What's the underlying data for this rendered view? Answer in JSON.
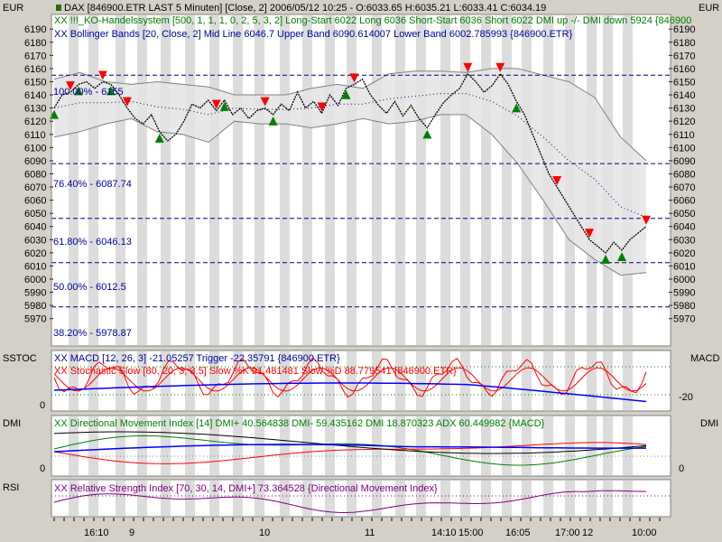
{
  "header": {
    "currency_left": "EUR",
    "currency_right": "EUR",
    "line1": "DAX [846900.ETR LAST 5 Minuten] [Close, 2] 2006/05/12 10:25 - O:6033.65 H:6035.21 L:6033.41 C:6034.19",
    "line2": "XX !!!_KO-Handelssystem [500, 1, 1, 1, 0, 2, 5, 3, 2] Long-Start 6022 Long 6036 Short-Start 6036 Short 6022 DMI up -/- DMI down 5924 {846900",
    "line3": "XX Bollinger Bands [20, Close, 2] Mid Line 6046.7 Upper Band 6090.614007 Lower Band 6002.785993 {846900.ETR}"
  },
  "panels": {
    "macd": {
      "left_label": "SSTOC",
      "right_label": "MACD",
      "line1": "XX MACD [12, 26, 3] -21.05257 Trigger -22.35791 {846900.ETR}",
      "line2": "XX Stochastic Slow [80, 20, 3, 3.5] Slow %K 91.481481 Slow %D 88.779541 {846900.ETR}",
      "tick_left": "0",
      "tick_right": "-20"
    },
    "dmi": {
      "left_label": "DMI",
      "right_label": "DMI",
      "line1": "XX Directional Movement Index [14] DMI+ 40.564838 DMI- 59.435162 DMI 18.870323 ADX 60.449982 {MACD}",
      "tick_left": "0",
      "tick_right": "0"
    },
    "rsi": {
      "left_label": "RSI",
      "line1": "XX Relative Strength Index [70, 30, 14, DMI+] 73.364528 {Directional Movement Index}"
    }
  },
  "fib_labels": [
    "100.00% - 6155",
    "76.40% - 6087.74",
    "61.80% - 6046.13",
    "50.00% - 6012.5",
    "38.20% - 5978.87"
  ],
  "x_axis_labels": [
    "16:10",
    "9",
    "10",
    "11",
    "14:10",
    "15:00",
    "16:05",
    "17:00",
    "12",
    "10:00"
  ],
  "colors": {
    "background": "#ffffff",
    "frame": "#d4d0c8",
    "price_line": "#000000",
    "long_signal": "#008000",
    "short_signal": "#ff0000",
    "fib_line": "#000080",
    "band": "#e4e4e4",
    "macd": "#0000ff",
    "stoch": "#ff0000",
    "rsi": "#800080"
  },
  "chart_data": [
    {
      "type": "line",
      "title": "DAX [846900.ETR LAST 5 Minuten]",
      "ylabel": "EUR",
      "ylim": [
        5965,
        6197
      ],
      "y_ticks": [
        6190,
        6180,
        6170,
        6160,
        6150,
        6140,
        6130,
        6120,
        6110,
        6100,
        6090,
        6080,
        6070,
        6060,
        6050,
        6040,
        6030,
        6020,
        6010,
        6000,
        5990,
        5980,
        5970
      ],
      "grid": true,
      "series": [
        {
          "name": "DAX",
          "values": [
            6130,
            6140,
            6142,
            6148,
            6150,
            6145,
            6150,
            6148,
            6140,
            6130,
            6122,
            6118,
            6125,
            6112,
            6105,
            6110,
            6120,
            6133,
            6130,
            6136,
            6128,
            6136,
            6125,
            6130,
            6122,
            6128,
            6130,
            6125,
            6133,
            6128,
            6142,
            6130,
            6135,
            6126,
            6140,
            6132,
            6145,
            6148,
            6152,
            6140,
            6132,
            6126,
            6135,
            6124,
            6132,
            6122,
            6115,
            6125,
            6134,
            6140,
            6145,
            6156,
            6150,
            6142,
            6147,
            6156,
            6148,
            6135,
            6125,
            6110,
            6095,
            6080,
            6070,
            6060,
            6050,
            6040,
            6030,
            6025,
            6020,
            6028,
            6022,
            6030,
            6035,
            6040
          ]
        },
        {
          "name": "Upper Band",
          "values": [
            6152,
            6157,
            6150,
            6148,
            6150,
            6148,
            6146,
            6140,
            6140,
            6140,
            6145,
            6148,
            6145,
            6156,
            6158,
            6158,
            6157,
            6160,
            6160,
            6155,
            6150,
            6138,
            6108,
            6090
          ]
        },
        {
          "name": "Lower Band",
          "values": [
            6108,
            6112,
            6118,
            6122,
            6112,
            6110,
            6104,
            6120,
            6118,
            6118,
            6115,
            6118,
            6122,
            6118,
            6120,
            6125,
            6125,
            6110,
            6088,
            6060,
            6030,
            6015,
            6003,
            6005
          ]
        },
        {
          "name": "Mid Line",
          "values": [
            6130,
            6134,
            6134,
            6135,
            6131,
            6129,
            6125,
            6130,
            6129,
            6129,
            6130,
            6133,
            6133,
            6137,
            6139,
            6141,
            6141,
            6135,
            6124,
            6108,
            6090,
            6076,
            6055,
            6047
          ]
        }
      ],
      "fib_levels": [
        6155,
        6087.74,
        6046.13,
        6012.5,
        5978.87
      ]
    },
    {
      "type": "line",
      "title": "MACD / Stochastic Slow",
      "series": [
        {
          "name": "MACD",
          "values": [
            -21.05257
          ]
        },
        {
          "name": "Trigger",
          "values": [
            -22.35791
          ]
        },
        {
          "name": "Slow %K",
          "values": [
            91.481481
          ]
        },
        {
          "name": "Slow %D",
          "values": [
            88.779541
          ]
        }
      ]
    },
    {
      "type": "line",
      "title": "Directional Movement Index",
      "series": [
        {
          "name": "DMI+",
          "values": [
            40.564838
          ]
        },
        {
          "name": "DMI-",
          "values": [
            59.435162
          ]
        },
        {
          "name": "DMI",
          "values": [
            18.870323
          ]
        },
        {
          "name": "ADX",
          "values": [
            60.449982
          ]
        }
      ]
    },
    {
      "type": "line",
      "title": "Relative Strength Index",
      "series": [
        {
          "name": "RSI",
          "values": [
            73.364528
          ]
        }
      ]
    }
  ]
}
